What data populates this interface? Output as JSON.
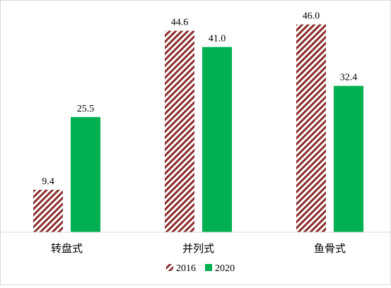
{
  "chart_data": {
    "type": "bar",
    "categories": [
      "转盘式",
      "并列式",
      "鱼骨式"
    ],
    "series": [
      {
        "name": "2016",
        "values": [
          9.4,
          44.6,
          46.0
        ],
        "labels": [
          "9.4",
          "44.6",
          "46.0"
        ],
        "color": "#8b2d2d",
        "pattern": "diagonal-hatch"
      },
      {
        "name": "2020",
        "values": [
          25.5,
          41.0,
          32.4
        ],
        "labels": [
          "25.5",
          "41.0",
          "32.4"
        ],
        "color": "#00b050",
        "pattern": "solid"
      }
    ],
    "title": "",
    "xlabel": "",
    "ylabel": "",
    "ylim": [
      0,
      50
    ],
    "grid": false,
    "legend": "bottom-center"
  }
}
